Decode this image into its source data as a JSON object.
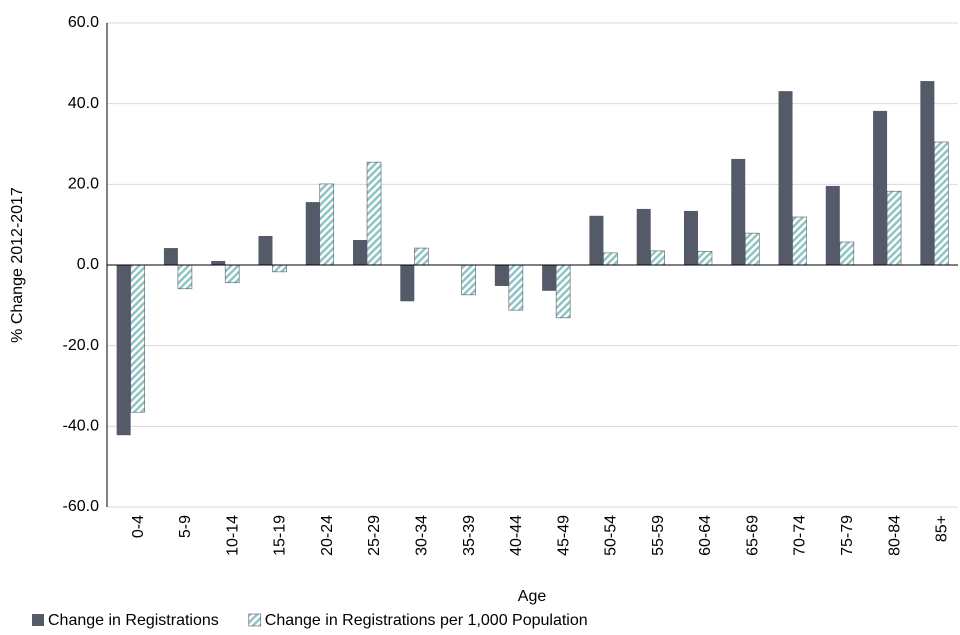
{
  "chart_data": {
    "type": "bar",
    "x_label": "Age",
    "y_label": "% Change 2012-2017",
    "categories": [
      "0-4",
      "5-9",
      "10-14",
      "15-19",
      "20-24",
      "25-29",
      "30-34",
      "35-39",
      "40-44",
      "45-49",
      "50-54",
      "55-59",
      "60-64",
      "65-69",
      "70-74",
      "75-79",
      "80-84",
      "85+"
    ],
    "series": [
      {
        "name": "Change in Registrations",
        "color": "#555a68",
        "values": [
          -42.2,
          4.2,
          1.0,
          7.2,
          15.6,
          6.2,
          -9.0,
          0,
          -5.2,
          -6.4,
          12.2,
          13.9,
          13.4,
          26.3,
          43.1,
          19.6,
          38.2,
          45.6
        ]
      },
      {
        "name": "Change in Registrations per 1,000 Population",
        "color": "#8fc4c2",
        "hatch": true,
        "values": [
          -36.5,
          -5.9,
          -4.4,
          -1.7,
          20.1,
          25.5,
          4.2,
          -7.4,
          -11.2,
          -13.1,
          3.0,
          3.5,
          3.4,
          7.9,
          11.9,
          5.7,
          18.3,
          30.5
        ]
      }
    ],
    "ylim": [
      -60,
      60
    ],
    "yticks": [
      {
        "value": -60,
        "label": "-60.0"
      },
      {
        "value": -40,
        "label": "-40.0"
      },
      {
        "value": -20,
        "label": "-20.0"
      },
      {
        "value": 0,
        "label": "0.0"
      },
      {
        "value": 20,
        "label": "20.0"
      },
      {
        "value": 40,
        "label": "40.0"
      },
      {
        "value": 60,
        "label": "60.0"
      }
    ],
    "grid": true,
    "legend": "bottom"
  }
}
